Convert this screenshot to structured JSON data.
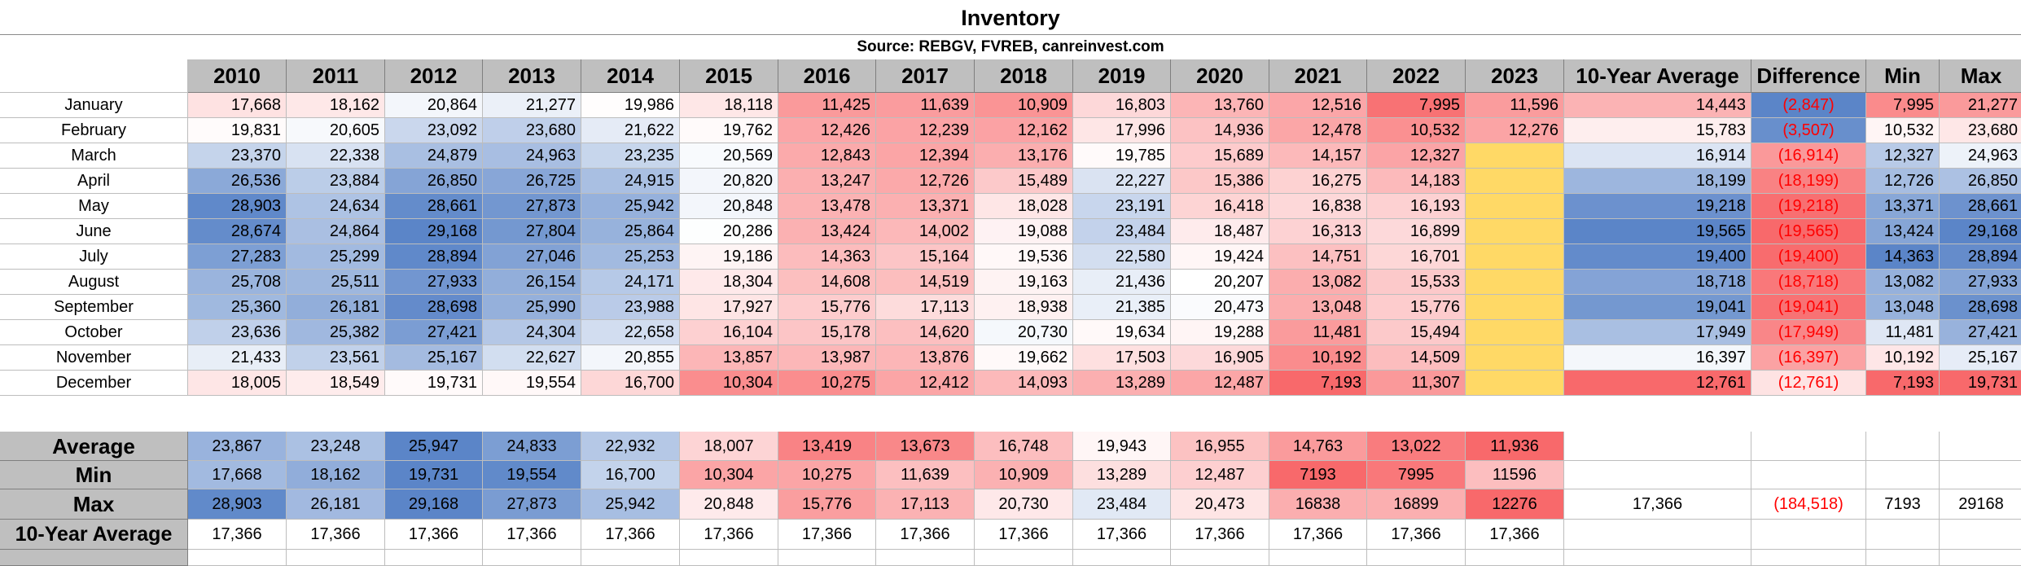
{
  "title": "Inventory",
  "source": "Source: REBGV, FVREB, canreinvest.com",
  "columns": [
    "2010",
    "2011",
    "2012",
    "2013",
    "2014",
    "2015",
    "2016",
    "2017",
    "2018",
    "2019",
    "2020",
    "2021",
    "2022",
    "2023",
    "10-Year Average",
    "Difference",
    "Min",
    "Max"
  ],
  "months": [
    {
      "label": "January",
      "values": [
        "17,668",
        "18,162",
        "20,864",
        "21,277",
        "19,986",
        "18,118",
        "11,425",
        "11,639",
        "10,909",
        "16,803",
        "13,760",
        "12,516",
        "7,995",
        "11,596",
        "14,443",
        "(2,847)",
        "7,995",
        "21,277"
      ]
    },
    {
      "label": "February",
      "values": [
        "19,831",
        "20,605",
        "23,092",
        "23,680",
        "21,622",
        "19,762",
        "12,426",
        "12,239",
        "12,162",
        "17,996",
        "14,936",
        "12,478",
        "10,532",
        "12,276",
        "15,783",
        "(3,507)",
        "10,532",
        "23,680"
      ]
    },
    {
      "label": "March",
      "values": [
        "23,370",
        "22,338",
        "24,879",
        "24,963",
        "23,235",
        "20,569",
        "12,843",
        "12,394",
        "13,176",
        "19,785",
        "15,689",
        "14,157",
        "12,327",
        "",
        "16,914",
        "(16,914)",
        "12,327",
        "24,963"
      ]
    },
    {
      "label": "April",
      "values": [
        "26,536",
        "23,884",
        "26,850",
        "26,725",
        "24,915",
        "20,820",
        "13,247",
        "12,726",
        "15,489",
        "22,227",
        "15,386",
        "16,275",
        "14,183",
        "",
        "18,199",
        "(18,199)",
        "12,726",
        "26,850"
      ]
    },
    {
      "label": "May",
      "values": [
        "28,903",
        "24,634",
        "28,661",
        "27,873",
        "25,942",
        "20,848",
        "13,478",
        "13,371",
        "18,028",
        "23,191",
        "16,418",
        "16,838",
        "16,193",
        "",
        "19,218",
        "(19,218)",
        "13,371",
        "28,661"
      ]
    },
    {
      "label": "June",
      "values": [
        "28,674",
        "24,864",
        "29,168",
        "27,804",
        "25,864",
        "20,286",
        "13,424",
        "14,002",
        "19,088",
        "23,484",
        "18,487",
        "16,313",
        "16,899",
        "",
        "19,565",
        "(19,565)",
        "13,424",
        "29,168"
      ]
    },
    {
      "label": "July",
      "values": [
        "27,283",
        "25,299",
        "28,894",
        "27,046",
        "25,253",
        "19,186",
        "14,363",
        "15,164",
        "19,536",
        "22,580",
        "19,424",
        "14,751",
        "16,701",
        "",
        "19,400",
        "(19,400)",
        "14,363",
        "28,894"
      ]
    },
    {
      "label": "August",
      "values": [
        "25,708",
        "25,511",
        "27,933",
        "26,154",
        "24,171",
        "18,304",
        "14,608",
        "14,519",
        "19,163",
        "21,436",
        "20,207",
        "13,082",
        "15,533",
        "",
        "18,718",
        "(18,718)",
        "13,082",
        "27,933"
      ]
    },
    {
      "label": "September",
      "values": [
        "25,360",
        "26,181",
        "28,698",
        "25,990",
        "23,988",
        "17,927",
        "15,776",
        "17,113",
        "18,938",
        "21,385",
        "20,473",
        "13,048",
        "15,776",
        "",
        "19,041",
        "(19,041)",
        "13,048",
        "28,698"
      ]
    },
    {
      "label": "October",
      "values": [
        "23,636",
        "25,382",
        "27,421",
        "24,304",
        "22,658",
        "16,104",
        "15,178",
        "14,620",
        "20,730",
        "19,634",
        "19,288",
        "11,481",
        "15,494",
        "",
        "17,949",
        "(17,949)",
        "11,481",
        "27,421"
      ]
    },
    {
      "label": "November",
      "values": [
        "21,433",
        "23,561",
        "25,167",
        "22,627",
        "20,855",
        "13,857",
        "13,987",
        "13,876",
        "19,662",
        "17,503",
        "16,905",
        "10,192",
        "14,509",
        "",
        "16,397",
        "(16,397)",
        "10,192",
        "25,167"
      ]
    },
    {
      "label": "December",
      "values": [
        "18,005",
        "18,549",
        "19,731",
        "19,554",
        "16,700",
        "10,304",
        "10,275",
        "12,412",
        "14,093",
        "13,289",
        "12,487",
        "7,193",
        "11,307",
        "",
        "12,761",
        "(12,761)",
        "7,193",
        "19,731"
      ]
    }
  ],
  "stats": [
    {
      "label": "Average",
      "values": [
        "23,867",
        "23,248",
        "25,947",
        "24,833",
        "22,932",
        "18,007",
        "13,419",
        "13,673",
        "16,748",
        "19,943",
        "16,955",
        "14,763",
        "13,022",
        "11,936",
        "",
        "",
        "",
        ""
      ]
    },
    {
      "label": "Min",
      "values": [
        "17,668",
        "18,162",
        "19,731",
        "19,554",
        "16,700",
        "10,304",
        "10,275",
        "11,639",
        "10,909",
        "13,289",
        "12,487",
        "7193",
        "7995",
        "11596",
        "",
        "",
        "",
        ""
      ]
    },
    {
      "label": "Max",
      "values": [
        "28,903",
        "26,181",
        "29,168",
        "27,873",
        "25,942",
        "20,848",
        "15,776",
        "17,113",
        "20,730",
        "23,484",
        "20,473",
        "16838",
        "16899",
        "12276",
        "17,366",
        "(184,518)",
        "7193",
        "29168"
      ]
    },
    {
      "label": "10-Year Average",
      "values": [
        "17,366",
        "17,366",
        "17,366",
        "17,366",
        "17,366",
        "17,366",
        "17,366",
        "17,366",
        "17,366",
        "17,366",
        "17,366",
        "17,366",
        "17,366",
        "17,366",
        "",
        "",
        "",
        ""
      ]
    }
  ],
  "colors": {
    "header_bg": "#bfbfbf",
    "blue_max": "#5b85c8",
    "red_max": "#f8696b",
    "white": "#ffffff",
    "yellow_empty": "#ffd966",
    "negative_text": "#ff0000"
  }
}
